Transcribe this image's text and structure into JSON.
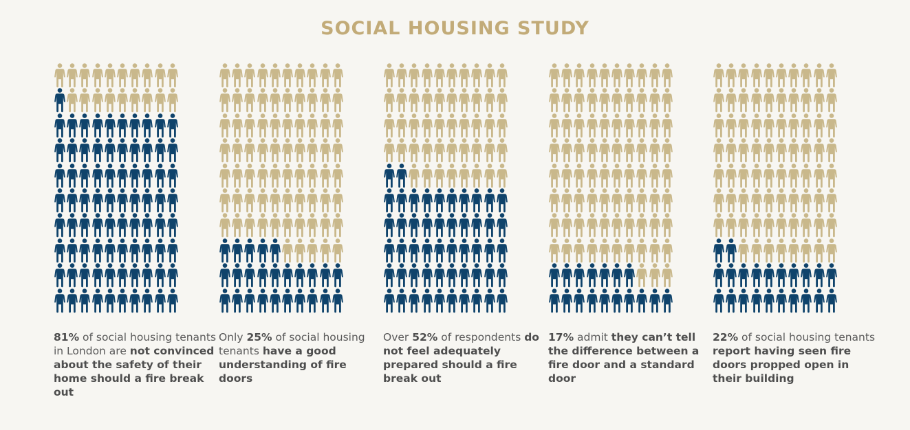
{
  "title": "SOCIAL HOUSING STUDY",
  "colors": {
    "highlight": "#0f436b",
    "base": "#c9b88b",
    "title": "#c2ab78",
    "background": "#f7f6f2"
  },
  "chart_data": {
    "type": "pictogram",
    "grid": {
      "rows": 10,
      "cols": 10,
      "total": 100
    },
    "items": [
      {
        "percent": 81,
        "caption": [
          {
            "t": "81%",
            "b": true
          },
          {
            "t": " of social housing tenants in London are ",
            "b": false
          },
          {
            "t": "not convinced about the safety of their home should a fire break out",
            "b": true
          }
        ]
      },
      {
        "percent": 25,
        "caption": [
          {
            "t": "Only ",
            "b": false
          },
          {
            "t": "25%",
            "b": true
          },
          {
            "t": " of social housing tenants ",
            "b": false
          },
          {
            "t": "have a good understanding of fire doors",
            "b": true
          }
        ]
      },
      {
        "percent": 52,
        "caption": [
          {
            "t": "Over ",
            "b": false
          },
          {
            "t": "52%",
            "b": true
          },
          {
            "t": " of respondents ",
            "b": false
          },
          {
            "t": "do not feel adequately prepared should a fire break out",
            "b": true
          }
        ]
      },
      {
        "percent": 17,
        "caption": [
          {
            "t": "17%",
            "b": true
          },
          {
            "t": " admit ",
            "b": false
          },
          {
            "t": "they can’t tell the difference between a fire door and a standard door",
            "b": true
          }
        ]
      },
      {
        "percent": 22,
        "caption": [
          {
            "t": "22%",
            "b": true
          },
          {
            "t": " of social housing tenants ",
            "b": false
          },
          {
            "t": "report having seen fire doors propped open in their building",
            "b": true
          }
        ]
      }
    ]
  }
}
